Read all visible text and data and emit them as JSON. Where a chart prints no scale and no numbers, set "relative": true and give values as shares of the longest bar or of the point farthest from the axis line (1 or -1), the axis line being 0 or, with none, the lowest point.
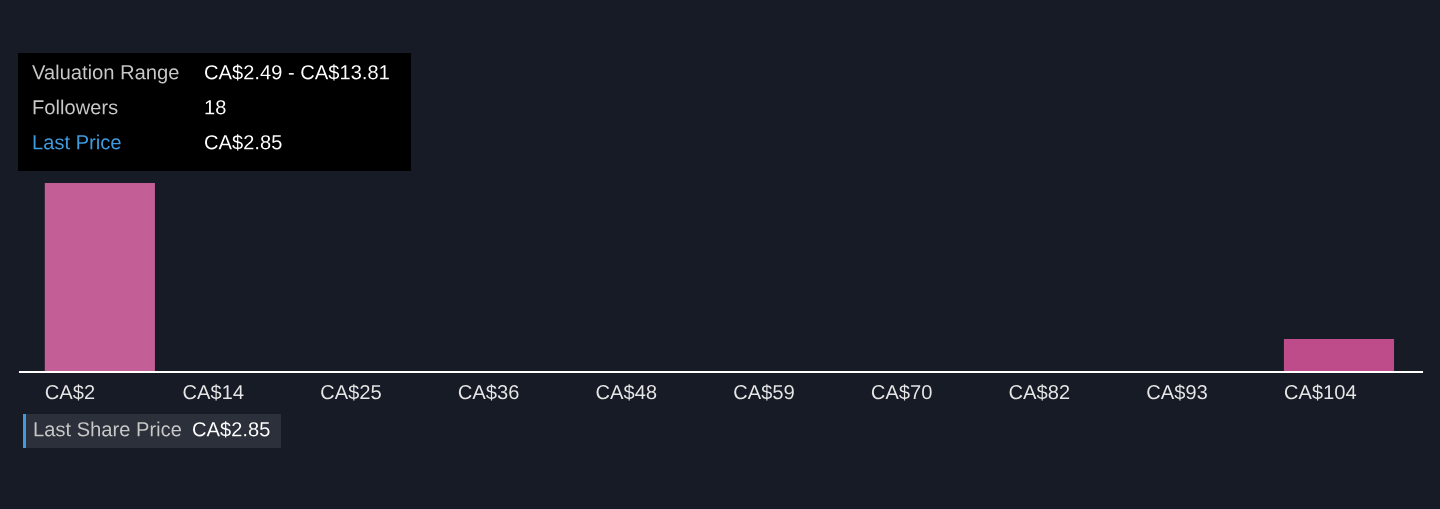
{
  "chart_data": {
    "type": "bar",
    "relative": true,
    "categories": [
      "CA$2",
      "CA$14",
      "CA$25",
      "CA$36",
      "CA$48",
      "CA$59",
      "CA$70",
      "CA$82",
      "CA$93",
      "CA$104"
    ],
    "values": [
      1,
      0,
      0,
      0,
      0,
      0,
      0,
      0,
      0,
      0.175
    ],
    "colors": [
      "#c45e96",
      "#be4c8a",
      "#be4c8a",
      "#be4c8a",
      "#be4c8a",
      "#be4c8a",
      "#be4c8a",
      "#be4c8a",
      "#be4c8a",
      "#be4c8a"
    ],
    "annotations": [
      "Valuation Range",
      "CA$2.49 - CA$13.81",
      "Followers",
      "18",
      "Last Price",
      "CA$2.85",
      "Last Share Price",
      "CA$2.85"
    ]
  }
}
